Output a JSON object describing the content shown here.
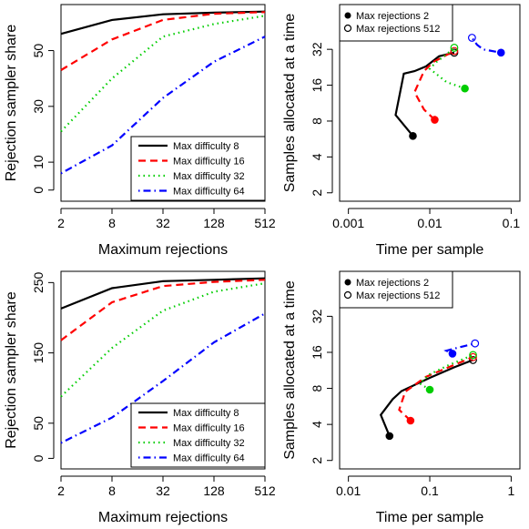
{
  "chart_data": [
    {
      "type": "line",
      "xlabel": "Maximum rejections",
      "ylabel": "Rejection sampler share",
      "x_scale": "log2",
      "xlim": [
        2,
        512
      ],
      "ylim": [
        0,
        64
      ],
      "x_ticks": [
        2,
        8,
        32,
        128,
        512
      ],
      "x_tick_labels": [
        "2",
        "8",
        "32",
        "128",
        "512"
      ],
      "y_ticks": [
        0,
        10,
        30,
        50
      ],
      "y_tick_labels": [
        "0",
        "10",
        "30",
        "50"
      ],
      "x": [
        2,
        8,
        32,
        128,
        512
      ],
      "legend_position": "bottom-right",
      "series": [
        {
          "name": "Max difficulty 8",
          "color": "#000000",
          "dash": "solid",
          "values": [
            56,
            61,
            63,
            63.6,
            64
          ]
        },
        {
          "name": "Max difficulty 16",
          "color": "#ff0000",
          "dash": "dashed",
          "values": [
            43,
            54,
            61,
            63.2,
            63.8
          ]
        },
        {
          "name": "Max difficulty 32",
          "color": "#00cd00",
          "dash": "dotted",
          "values": [
            21,
            40,
            55,
            59.5,
            62.5
          ]
        },
        {
          "name": "Max difficulty 64",
          "color": "#0000ff",
          "dash": "dotdash",
          "values": [
            6,
            16,
            33,
            46,
            55
          ]
        }
      ]
    },
    {
      "type": "line",
      "xlabel": "Time per sample",
      "ylabel": "Samples allocated at a time",
      "x_scale": "log10",
      "y_scale": "log2",
      "xlim": [
        0.001,
        0.1
      ],
      "ylim": [
        2,
        64
      ],
      "x_ticks": [
        0.001,
        0.01,
        0.1
      ],
      "x_tick_labels": [
        "0.001",
        "0.01",
        "0.1"
      ],
      "y_ticks": [
        2,
        4,
        8,
        16,
        32
      ],
      "y_tick_labels": [
        "2",
        "4",
        "8",
        "16",
        "32"
      ],
      "legend_position": "top-left",
      "legend": [
        {
          "label": "Max rejections 2",
          "marker": "filled-circle"
        },
        {
          "label": "Max rejections 512",
          "marker": "open-circle"
        }
      ],
      "series": [
        {
          "name": "Max difficulty 8",
          "color": "#000000",
          "dash": "solid",
          "points": [
            [
              0.0062,
              6
            ],
            [
              0.0038,
              9
            ],
            [
              0.0048,
              20
            ],
            [
              0.0065,
              21
            ],
            [
              0.009,
              23
            ],
            [
              0.013,
              28
            ],
            [
              0.02,
              30
            ]
          ]
        },
        {
          "name": "Max difficulty 16",
          "color": "#ff0000",
          "dash": "dashed",
          "points": [
            [
              0.0115,
              8.2
            ],
            [
              0.0085,
              10
            ],
            [
              0.0065,
              14
            ],
            [
              0.0085,
              21
            ],
            [
              0.011,
              25
            ],
            [
              0.015,
              28
            ],
            [
              0.02,
              31
            ]
          ]
        },
        {
          "name": "Max difficulty 32",
          "color": "#00cd00",
          "dash": "dotted",
          "points": [
            [
              0.027,
              15
            ],
            [
              0.016,
              17
            ],
            [
              0.01,
              22
            ],
            [
              0.012,
              25
            ],
            [
              0.016,
              29
            ],
            [
              0.02,
              33
            ]
          ]
        },
        {
          "name": "Max difficulty 64",
          "color": "#0000ff",
          "dash": "dotdash",
          "points": [
            [
              0.075,
              30
            ],
            [
              0.045,
              32
            ],
            [
              0.038,
              35
            ],
            [
              0.033,
              40
            ]
          ]
        }
      ]
    },
    {
      "type": "line",
      "xlabel": "Maximum rejections",
      "ylabel": "Rejection sampler share",
      "x_scale": "log2",
      "xlim": [
        2,
        512
      ],
      "ylim": [
        0,
        256
      ],
      "x_ticks": [
        2,
        8,
        32,
        128,
        512
      ],
      "x_tick_labels": [
        "2",
        "8",
        "32",
        "128",
        "512"
      ],
      "y_ticks": [
        0,
        50,
        150,
        250
      ],
      "y_tick_labels": [
        "0",
        "50",
        "150",
        "250"
      ],
      "x": [
        2,
        8,
        32,
        128,
        512
      ],
      "legend_position": "bottom-right",
      "series": [
        {
          "name": "Max difficulty 8",
          "color": "#000000",
          "dash": "solid",
          "values": [
            213,
            242,
            252,
            254,
            256
          ]
        },
        {
          "name": "Max difficulty 16",
          "color": "#ff0000",
          "dash": "dashed",
          "values": [
            168,
            222,
            245,
            251,
            254
          ]
        },
        {
          "name": "Max difficulty 32",
          "color": "#00cd00",
          "dash": "dotted",
          "values": [
            88,
            157,
            210,
            237,
            249
          ]
        },
        {
          "name": "Max difficulty 64",
          "color": "#0000ff",
          "dash": "dotdash",
          "values": [
            22,
            58,
            110,
            165,
            206
          ]
        }
      ]
    },
    {
      "type": "line",
      "xlabel": "Time per sample",
      "ylabel": "Samples allocated at a time",
      "x_scale": "log10",
      "y_scale": "log2",
      "xlim": [
        0.01,
        1
      ],
      "ylim": [
        2,
        64
      ],
      "x_ticks": [
        0.01,
        0.1,
        1
      ],
      "x_tick_labels": [
        "0.01",
        "0.1",
        "1"
      ],
      "y_ticks": [
        2,
        4,
        8,
        16,
        32
      ],
      "y_tick_labels": [
        "2",
        "4",
        "8",
        "16",
        "32"
      ],
      "legend_position": "top-left",
      "legend": [
        {
          "label": "Max rejections 2",
          "marker": "filled-circle"
        },
        {
          "label": "Max rejections 512",
          "marker": "open-circle"
        }
      ],
      "series": [
        {
          "name": "Max difficulty 8",
          "color": "#000000",
          "dash": "solid",
          "points": [
            [
              0.032,
              3.2
            ],
            [
              0.025,
              4.8
            ],
            [
              0.035,
              6.5
            ],
            [
              0.045,
              7.6
            ],
            [
              0.1,
              9.8
            ],
            [
              0.2,
              12
            ],
            [
              0.34,
              13.8
            ]
          ]
        },
        {
          "name": "Max difficulty 16",
          "color": "#ff0000",
          "dash": "dashed",
          "points": [
            [
              0.058,
              4.3
            ],
            [
              0.042,
              5.3
            ],
            [
              0.05,
              7.5
            ],
            [
              0.09,
              10
            ],
            [
              0.17,
              12
            ],
            [
              0.34,
              14.6
            ]
          ]
        },
        {
          "name": "Max difficulty 32",
          "color": "#00cd00",
          "dash": "dotted",
          "points": [
            [
              0.1,
              7.8
            ],
            [
              0.075,
              8.8
            ],
            [
              0.1,
              10.5
            ],
            [
              0.17,
              12.5
            ],
            [
              0.34,
              15.2
            ]
          ]
        },
        {
          "name": "Max difficulty 64",
          "color": "#0000ff",
          "dash": "dotdash",
          "points": [
            [
              0.19,
              15.6
            ],
            [
              0.16,
              16.5
            ],
            [
              0.22,
              17.5
            ],
            [
              0.36,
              19
            ]
          ]
        }
      ]
    }
  ]
}
